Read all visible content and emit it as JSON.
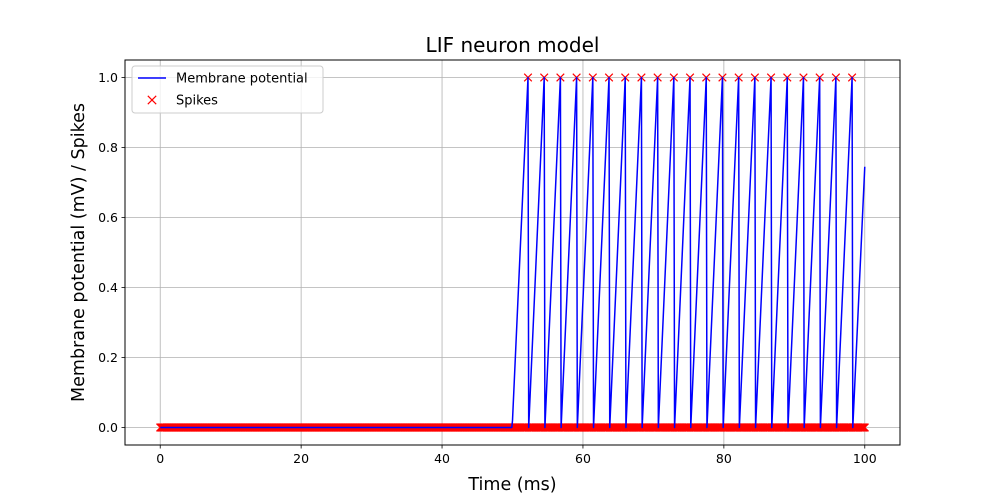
{
  "chart_data": {
    "type": "line",
    "title": "LIF neuron model",
    "xlabel": "Time (ms)",
    "ylabel": "Membrane potential (mV) / Spikes",
    "xlim": [
      -5,
      105
    ],
    "ylim": [
      -0.05,
      1.05
    ],
    "xticks": [
      0,
      20,
      40,
      60,
      80,
      100
    ],
    "yticks": [
      0.0,
      0.2,
      0.4,
      0.6,
      0.8,
      1.0
    ],
    "xtick_labels": [
      "0",
      "20",
      "40",
      "60",
      "80",
      "100"
    ],
    "ytick_labels": [
      "0.0",
      "0.2",
      "0.4",
      "0.6",
      "0.8",
      "1.0"
    ],
    "grid": true,
    "legend_position": "top-left",
    "dt": 0.1,
    "input_onset": 50,
    "input_offset": 100,
    "series": [
      {
        "name": "Membrane potential",
        "kind": "line",
        "color": "#0000ff",
        "x": [
          0,
          49.9,
          50.0,
          52.2,
          52.3,
          54.5,
          54.6,
          56.8,
          56.9,
          59.1,
          59.2,
          61.4,
          61.5,
          63.7,
          63.8,
          66.0,
          66.1,
          68.3,
          68.4,
          70.6,
          70.7,
          72.9,
          73.0,
          75.2,
          75.3,
          77.5,
          77.6,
          79.8,
          79.9,
          82.1,
          82.2,
          84.4,
          84.5,
          86.7,
          86.8,
          89.0,
          89.1,
          91.3,
          91.4,
          93.6,
          93.7,
          95.9,
          96.0,
          98.2,
          98.3,
          100.0
        ],
        "y": [
          0,
          0,
          0.02,
          1.0,
          0.0,
          1.0,
          0.0,
          1.0,
          0.0,
          1.0,
          0.0,
          1.0,
          0.0,
          1.0,
          0.0,
          1.0,
          0.0,
          1.0,
          0.0,
          1.0,
          0.0,
          1.0,
          0.0,
          1.0,
          0.0,
          1.0,
          0.0,
          1.0,
          0.0,
          1.0,
          0.0,
          1.0,
          0.0,
          1.0,
          0.0,
          1.0,
          0.0,
          1.0,
          0.0,
          1.0,
          0.0,
          1.0,
          0.0,
          1.0,
          0.0,
          0.745
        ]
      },
      {
        "name": "Spikes",
        "kind": "scatter",
        "marker": "x",
        "color": "#ff0000",
        "spike_times": [
          52.2,
          54.5,
          56.8,
          59.1,
          61.4,
          63.7,
          66.0,
          68.3,
          70.6,
          72.9,
          75.2,
          77.5,
          79.8,
          82.1,
          84.4,
          86.7,
          89.0,
          91.3,
          93.6,
          95.9,
          98.2
        ],
        "spike_value": 1.0,
        "baseline_value": 0.0
      }
    ]
  }
}
